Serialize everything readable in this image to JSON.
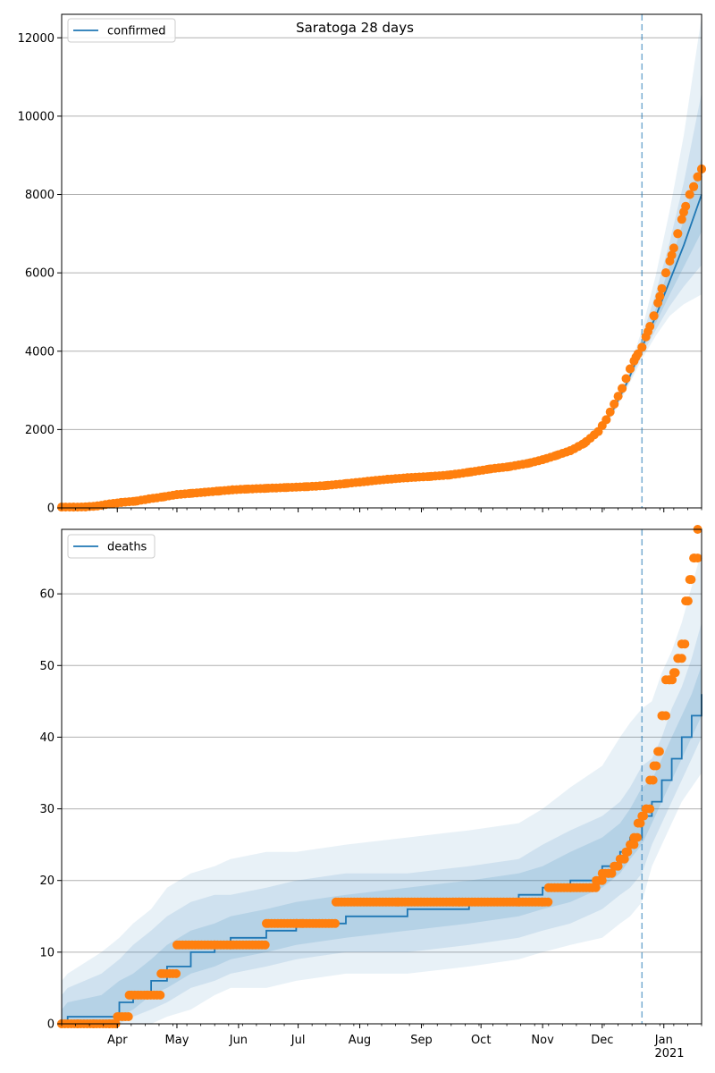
{
  "colors": {
    "line": "#1f77b4",
    "observed": "#ff7f0e",
    "band": "#1f77b4",
    "grid": "#b0b0b0",
    "vline": "#1f77b4"
  },
  "chart_data": [
    {
      "type": "line",
      "title": "Saratoga 28 days",
      "legend": {
        "label": "confirmed",
        "placement": "top-left"
      },
      "x_range": [
        "2020-03-04",
        "2021-01-20"
      ],
      "forecast_date": "2020-12-21",
      "ylim": [
        0,
        12600
      ],
      "yticks": [
        0,
        2000,
        4000,
        6000,
        8000,
        10000,
        12000
      ],
      "grid": true,
      "observed": {
        "x": [
          "2020-03-04",
          "2020-03-10",
          "2020-03-16",
          "2020-03-22",
          "2020-03-28",
          "2020-04-03",
          "2020-04-10",
          "2020-04-17",
          "2020-04-24",
          "2020-05-01",
          "2020-05-08",
          "2020-05-15",
          "2020-05-22",
          "2020-05-29",
          "2020-06-05",
          "2020-06-15",
          "2020-06-25",
          "2020-07-05",
          "2020-07-15",
          "2020-07-25",
          "2020-08-05",
          "2020-08-15",
          "2020-08-25",
          "2020-09-05",
          "2020-09-15",
          "2020-09-25",
          "2020-10-05",
          "2020-10-15",
          "2020-10-25",
          "2020-11-01",
          "2020-11-08",
          "2020-11-15",
          "2020-11-22",
          "2020-11-29",
          "2020-12-03",
          "2020-12-07",
          "2020-12-11",
          "2020-12-15",
          "2020-12-18",
          "2020-12-21",
          "2020-12-24",
          "2020-12-27",
          "2020-12-30",
          "2021-01-02",
          "2021-01-05",
          "2021-01-08",
          "2021-01-11",
          "2021-01-14",
          "2021-01-16",
          "2021-01-18",
          "2021-01-20"
        ],
        "y": [
          20,
          20,
          25,
          50,
          100,
          140,
          170,
          230,
          280,
          340,
          370,
          400,
          430,
          460,
          480,
          500,
          520,
          540,
          570,
          620,
          680,
          730,
          770,
          800,
          840,
          910,
          990,
          1050,
          1140,
          1230,
          1340,
          1460,
          1650,
          1950,
          2250,
          2650,
          3050,
          3550,
          3850,
          4100,
          4500,
          4900,
          5400,
          6000,
          6450,
          7000,
          7550,
          8000,
          8200,
          8450,
          8650
        ]
      },
      "median": {
        "x": [
          "2020-03-04",
          "2020-03-20",
          "2020-04-05",
          "2020-04-25",
          "2020-05-15",
          "2020-06-05",
          "2020-07-05",
          "2020-08-05",
          "2020-09-05",
          "2020-10-05",
          "2020-11-01",
          "2020-11-15",
          "2020-11-29",
          "2020-12-07",
          "2020-12-14",
          "2020-12-21",
          "2020-12-28",
          "2021-01-04",
          "2021-01-11",
          "2021-01-20"
        ],
        "y": [
          10,
          40,
          140,
          290,
          400,
          480,
          560,
          700,
          830,
          1000,
          1260,
          1460,
          1900,
          2550,
          3250,
          4100,
          4900,
          5800,
          6700,
          8000
        ]
      },
      "bands": [
        {
          "level": "outer",
          "lower": [
            0,
            15,
            100,
            250,
            360,
            440,
            510,
            650,
            780,
            950,
            1200,
            1400,
            1820,
            2430,
            3100,
            3800,
            4400,
            4900,
            5200,
            5450
          ],
          "upper": [
            35,
            75,
            200,
            350,
            460,
            540,
            620,
            760,
            890,
            1070,
            1330,
            1540,
            2000,
            2700,
            3450,
            4550,
            5950,
            7600,
            9500,
            12550
          ]
        },
        {
          "level": "middle",
          "lower": [
            3,
            25,
            115,
            265,
            375,
            455,
            530,
            670,
            800,
            970,
            1225,
            1425,
            1850,
            2470,
            3150,
            3900,
            4550,
            5150,
            5650,
            6200
          ],
          "upper": [
            25,
            60,
            175,
            325,
            435,
            515,
            595,
            735,
            865,
            1045,
            1305,
            1510,
            1960,
            2640,
            3370,
            4350,
            5500,
            6800,
            8300,
            10600
          ]
        },
        {
          "level": "inner",
          "lower": [
            6,
            32,
            128,
            278,
            388,
            468,
            545,
            685,
            815,
            985,
            1242,
            1442,
            1875,
            2510,
            3200,
            4000,
            4720,
            5450,
            6150,
            7050
          ],
          "upper": [
            18,
            50,
            155,
            305,
            415,
            495,
            575,
            715,
            845,
            1020,
            1280,
            1480,
            1930,
            2590,
            3300,
            4200,
            5100,
            6200,
            7350,
            8950
          ]
        }
      ]
    },
    {
      "type": "line",
      "title": "",
      "legend": {
        "label": "deaths",
        "placement": "top-left"
      },
      "x_range": [
        "2020-03-04",
        "2021-01-20"
      ],
      "forecast_date": "2020-12-21",
      "ylim": [
        0,
        69
      ],
      "yticks": [
        0,
        10,
        20,
        30,
        40,
        50,
        60
      ],
      "grid": true,
      "xticks": [
        {
          "date": "2020-04-01",
          "label": "Apr"
        },
        {
          "date": "2020-05-01",
          "label": "May"
        },
        {
          "date": "2020-06-01",
          "label": "Jun"
        },
        {
          "date": "2020-07-01",
          "label": "Jul"
        },
        {
          "date": "2020-08-01",
          "label": "Aug"
        },
        {
          "date": "2020-09-01",
          "label": "Sep"
        },
        {
          "date": "2020-10-01",
          "label": "Oct"
        },
        {
          "date": "2020-11-01",
          "label": "Nov"
        },
        {
          "date": "2020-12-01",
          "label": "Dec"
        },
        {
          "date": "2021-01-01",
          "label": "Jan"
        }
      ],
      "year_label": "2021",
      "observed": {
        "x": [
          "2020-03-04",
          "2020-03-12",
          "2020-03-20",
          "2020-03-28",
          "2020-04-01",
          "2020-04-07",
          "2020-04-16",
          "2020-04-23",
          "2020-05-01",
          "2020-05-20",
          "2020-05-28",
          "2020-06-15",
          "2020-06-30",
          "2020-07-03",
          "2020-07-20",
          "2020-08-20",
          "2020-09-20",
          "2020-10-20",
          "2020-11-01",
          "2020-11-04",
          "2020-11-15",
          "2020-11-26",
          "2020-11-28",
          "2020-12-01",
          "2020-12-04",
          "2020-12-07",
          "2020-12-10",
          "2020-12-13",
          "2020-12-15",
          "2020-12-17",
          "2020-12-19",
          "2020-12-21",
          "2020-12-23",
          "2020-12-25",
          "2020-12-27",
          "2020-12-29",
          "2020-12-31",
          "2021-01-02",
          "2021-01-04",
          "2021-01-06",
          "2021-01-08",
          "2021-01-10",
          "2021-01-12",
          "2021-01-14",
          "2021-01-16",
          "2021-01-18"
        ],
        "y": [
          0,
          0,
          0,
          0,
          1,
          4,
          4,
          7,
          11,
          11,
          11,
          14,
          14,
          14,
          17,
          17,
          17,
          17,
          17,
          19,
          19,
          19,
          20,
          21,
          21,
          22,
          23,
          24,
          25,
          26,
          28,
          29,
          30,
          34,
          36,
          38,
          43,
          48,
          48,
          49,
          51,
          53,
          59,
          62,
          65,
          69
        ]
      },
      "median": {
        "x": [
          "2020-03-04",
          "2020-03-07",
          "2020-03-24",
          "2020-04-02",
          "2020-04-09",
          "2020-04-18",
          "2020-04-26",
          "2020-05-08",
          "2020-05-20",
          "2020-05-28",
          "2020-06-15",
          "2020-06-30",
          "2020-07-25",
          "2020-08-25",
          "2020-09-25",
          "2020-10-20",
          "2020-11-01",
          "2020-11-15",
          "2020-12-01",
          "2020-12-10",
          "2020-12-15",
          "2020-12-21",
          "2020-12-26",
          "2020-12-31",
          "2021-01-05",
          "2021-01-10",
          "2021-01-15",
          "2021-01-20"
        ],
        "y": [
          0,
          1,
          1,
          3,
          4,
          6,
          8,
          10,
          11,
          12,
          13,
          14,
          15,
          16,
          17,
          18,
          19,
          20,
          22,
          24,
          26,
          29,
          31,
          34,
          37,
          40,
          43,
          46
        ]
      },
      "bands": [
        {
          "level": "outer",
          "lower": [
            0,
            0,
            0,
            0,
            0,
            0,
            1,
            2,
            4,
            5,
            5,
            6,
            7,
            7,
            8,
            9,
            10,
            11,
            12,
            14,
            15,
            17,
            22,
            25,
            28,
            31,
            33,
            35
          ],
          "upper": [
            6,
            7,
            10,
            12,
            14,
            16,
            19,
            21,
            22,
            23,
            24,
            24,
            25,
            26,
            27,
            28,
            30,
            33,
            36,
            40,
            42,
            44,
            45,
            49,
            52,
            56,
            61,
            66
          ]
        },
        {
          "level": "middle",
          "lower": [
            0,
            0,
            0,
            0,
            1,
            2,
            3,
            5,
            6,
            7,
            8,
            9,
            10,
            10,
            11,
            12,
            13,
            14,
            16,
            18,
            19,
            21,
            25,
            28,
            31,
            34,
            37,
            40
          ],
          "upper": [
            4,
            5,
            7,
            9,
            11,
            13,
            15,
            17,
            18,
            18,
            19,
            20,
            21,
            21,
            22,
            23,
            25,
            27,
            29,
            31,
            33,
            36,
            37,
            40,
            44,
            47,
            51,
            56
          ]
        },
        {
          "level": "inner",
          "lower": [
            0,
            0,
            0,
            1,
            2,
            4,
            5,
            7,
            8,
            9,
            10,
            11,
            12,
            13,
            14,
            15,
            16,
            17,
            19,
            21,
            23,
            25,
            28,
            31,
            34,
            37,
            40,
            43
          ],
          "upper": [
            2,
            3,
            4,
            6,
            7,
            9,
            11,
            13,
            14,
            15,
            16,
            17,
            18,
            19,
            20,
            21,
            22,
            24,
            26,
            28,
            30,
            33,
            34,
            37,
            40,
            43,
            46,
            50
          ]
        }
      ]
    }
  ]
}
